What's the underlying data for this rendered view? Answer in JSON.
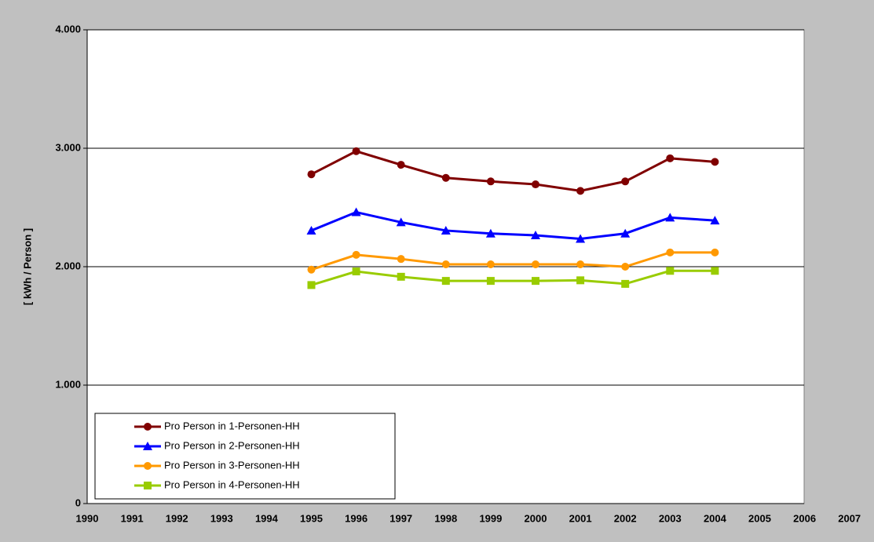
{
  "chart_data": {
    "type": "line",
    "ylabel": "[ kWh / Person ]",
    "categories": [
      "1990",
      "1991",
      "1992",
      "1993",
      "1994",
      "1995",
      "1996",
      "1997",
      "1998",
      "1999",
      "2000",
      "2001",
      "2002",
      "2003",
      "2004",
      "2005",
      "2006",
      "2007"
    ],
    "series": [
      {
        "name": "Pro Person in 1-Personen-HH",
        "color": "#800000",
        "marker": "circle",
        "values": [
          null,
          null,
          null,
          null,
          null,
          2780,
          2975,
          2860,
          2750,
          2720,
          2695,
          2640,
          2720,
          2915,
          2885,
          null,
          null,
          null
        ]
      },
      {
        "name": "Pro Person in 2-Personen-HH",
        "color": "#0000ff",
        "marker": "triangle",
        "values": [
          null,
          null,
          null,
          null,
          null,
          2305,
          2460,
          2375,
          2305,
          2280,
          2265,
          2235,
          2280,
          2415,
          2390,
          null,
          null,
          null
        ]
      },
      {
        "name": "Pro Person in 3-Personen-HH",
        "color": "#ff9900",
        "marker": "circle",
        "values": [
          null,
          null,
          null,
          null,
          null,
          1975,
          2100,
          2065,
          2020,
          2020,
          2020,
          2020,
          2000,
          2120,
          2120,
          null,
          null,
          null
        ]
      },
      {
        "name": "Pro Person in 4-Personen-HH",
        "color": "#99cc00",
        "marker": "square",
        "values": [
          null,
          null,
          null,
          null,
          null,
          1845,
          1960,
          1915,
          1880,
          1880,
          1880,
          1885,
          1855,
          1965,
          1965,
          null,
          null,
          null
        ]
      }
    ],
    "ylim": [
      0,
      4000
    ],
    "yticks": [
      0,
      {
        "value": 1000,
        "label": "1.000"
      },
      {
        "value": 2000,
        "label": "2.000"
      },
      {
        "value": 3000,
        "label": "3.000"
      },
      {
        "value": 4000,
        "label": "4.000"
      }
    ],
    "grid": true,
    "legend": "lower left"
  }
}
